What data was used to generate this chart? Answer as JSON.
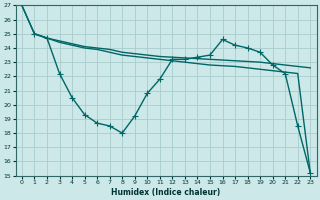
{
  "xlabel": "Humidex (Indice chaleur)",
  "bg_color": "#cce8e8",
  "grid_color": "#aacccc",
  "line_color": "#006666",
  "xlim": [
    -0.5,
    23.5
  ],
  "ylim": [
    15,
    27
  ],
  "xticks": [
    0,
    1,
    2,
    3,
    4,
    5,
    6,
    7,
    8,
    9,
    10,
    11,
    12,
    13,
    14,
    15,
    16,
    17,
    18,
    19,
    20,
    21,
    22,
    23
  ],
  "yticks": [
    15,
    16,
    17,
    18,
    19,
    20,
    21,
    22,
    23,
    24,
    25,
    26,
    27
  ],
  "line1_x": [
    0,
    1,
    2,
    3,
    4,
    5,
    6,
    7,
    8,
    9,
    10,
    11,
    12,
    13,
    14,
    15,
    16,
    17,
    18,
    19,
    20,
    21,
    22,
    23
  ],
  "line1_y": [
    27,
    25,
    24.7,
    24.5,
    24.3,
    24.1,
    24.0,
    23.9,
    23.7,
    23.6,
    23.5,
    23.4,
    23.35,
    23.3,
    23.25,
    23.2,
    23.15,
    23.1,
    23.05,
    23.0,
    22.9,
    22.8,
    22.7,
    22.6
  ],
  "line2_x": [
    0,
    1,
    2,
    3,
    4,
    5,
    6,
    7,
    8,
    9,
    10,
    11,
    12,
    13,
    14,
    15,
    16,
    17,
    18,
    19,
    20,
    21,
    22,
    23
  ],
  "line2_y": [
    27,
    25,
    24.7,
    24.4,
    24.2,
    24.0,
    23.9,
    23.7,
    23.5,
    23.4,
    23.3,
    23.2,
    23.1,
    23.0,
    22.9,
    22.8,
    22.75,
    22.7,
    22.6,
    22.5,
    22.4,
    22.3,
    22.2,
    15.2
  ],
  "line3_x": [
    1,
    2,
    3,
    4,
    5,
    6,
    7,
    8,
    9,
    10,
    11,
    12,
    13,
    14,
    15,
    16,
    17,
    18,
    19,
    20,
    21,
    22,
    23
  ],
  "line3_y": [
    25,
    24.7,
    22.2,
    20.5,
    19.3,
    18.7,
    18.5,
    18.0,
    19.2,
    20.8,
    21.8,
    23.2,
    23.2,
    23.35,
    23.5,
    24.6,
    24.2,
    24.0,
    23.7,
    22.8,
    22.2,
    18.5,
    15.2
  ],
  "marker": "+",
  "markersize": 4,
  "linewidth": 1.0
}
